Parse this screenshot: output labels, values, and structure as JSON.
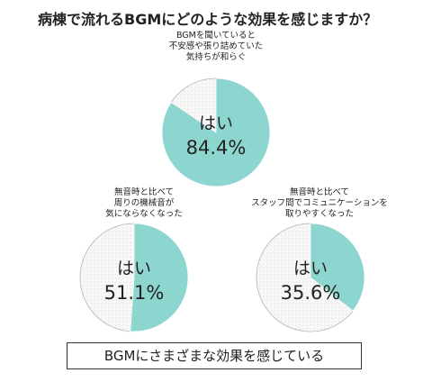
{
  "title": "病棟で流れるBGMにどのような効果を感じますか？",
  "summary": "BGMにさまざまな効果を感じている",
  "colors": {
    "yes": "#8dd6cf",
    "other": "#f7f7f7",
    "edge": "#b5b5b5",
    "dots": "#c8c8c8"
  },
  "chart_data": [
    {
      "type": "pie",
      "caption": "BGMを聞いていると\n不安感や張り詰めていた\n気持ちが和らぐ",
      "label": "はい",
      "value_text": "84.4%",
      "value": 84.4
    },
    {
      "type": "pie",
      "caption": "無音時と比べて\n周りの機械音が\n気にならなくなった",
      "label": "はい",
      "value_text": "51.1%",
      "value": 51.1
    },
    {
      "type": "pie",
      "caption": "無音時と比べて\nスタッフ間でコミュニケーションを\n取りやすくなった",
      "label": "はい",
      "value_text": "35.6%",
      "value": 35.6
    }
  ]
}
